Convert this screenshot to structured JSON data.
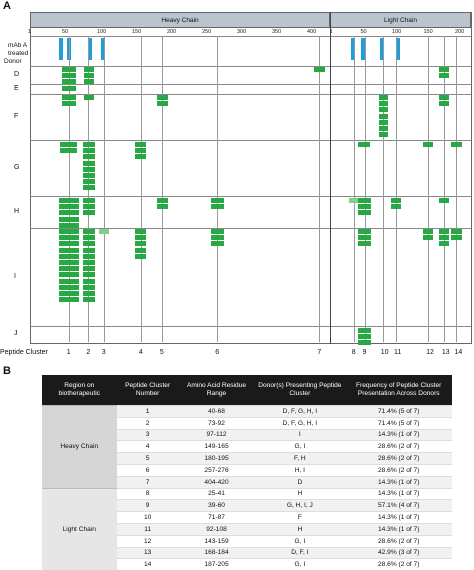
{
  "panel_a": {
    "letter": "A",
    "heavy_chain_title": "Heavy Chain",
    "light_chain_title": "Light Chain",
    "treated_label": "mAb A\ntreated",
    "donor_label": "Donor",
    "hc_ticks": [
      "1",
      "50",
      "100",
      "150",
      "200",
      "250",
      "300",
      "350",
      "400"
    ],
    "lc_ticks": [
      "1",
      "50",
      "100",
      "150",
      "200"
    ],
    "rows": [
      "D",
      "E",
      "F",
      "G",
      "H",
      "I",
      "J"
    ],
    "peptide_cluster_label": "Peptide  Cluster",
    "cluster_numbers": [
      "1",
      "2",
      "3",
      "4",
      "5",
      "6",
      "7",
      "8",
      "9",
      "10",
      "11",
      "12",
      "13",
      "14"
    ]
  },
  "panel_b": {
    "letter": "B",
    "headers": [
      "Region on biotherapeutic",
      "Peptide Cluster Number",
      "Amino Acid Residue Range",
      "Donor(s) Presenting Peptide Cluster",
      "Frequency of Peptide Cluster Presentation Across Donors"
    ],
    "regions": [
      "Heavy Chain",
      "Light Chain"
    ],
    "rows": [
      [
        "1",
        "40-68",
        "D, F, G, H, I",
        "71.4% (5 of 7)"
      ],
      [
        "2",
        "73-92",
        "D, F, G, H, I",
        "71.4% (5 of 7)"
      ],
      [
        "3",
        "97-112",
        "I",
        "14.3% (1 of 7)"
      ],
      [
        "4",
        "149-165",
        "G, I",
        "28.6% (2 of 7)"
      ],
      [
        "5",
        "180-195",
        "F, H",
        "28.6% (2 of 7)"
      ],
      [
        "6",
        "257-276",
        "H, I",
        "28.6% (2 of 7)"
      ],
      [
        "7",
        "404-420",
        "D",
        "14.3% (1 of 7)"
      ],
      [
        "8",
        "25-41",
        "H",
        "14.3% (1 of 7)"
      ],
      [
        "9",
        "39-60",
        "G, H, I, J",
        "57.1% (4 of 7)"
      ],
      [
        "10",
        "71-87",
        "F",
        "14.3% (1 of 7)"
      ],
      [
        "11",
        "92-108",
        "H",
        "14.3% (1 of 7)"
      ],
      [
        "12",
        "143-159",
        "G, I",
        "28.6% (2 of 7)"
      ],
      [
        "13",
        "168-184",
        "D, F, I",
        "42.9% (3 of 7)"
      ],
      [
        "14",
        "187-205",
        "G, I",
        "28.6% (2 of 7)"
      ]
    ]
  },
  "colors": {
    "marker": "#28a745",
    "marker_light": "#7fd08a",
    "treated_bar": "#1f9fd9",
    "header_bar": "#b9c4cf",
    "table_header": "#1a1a1a"
  }
}
